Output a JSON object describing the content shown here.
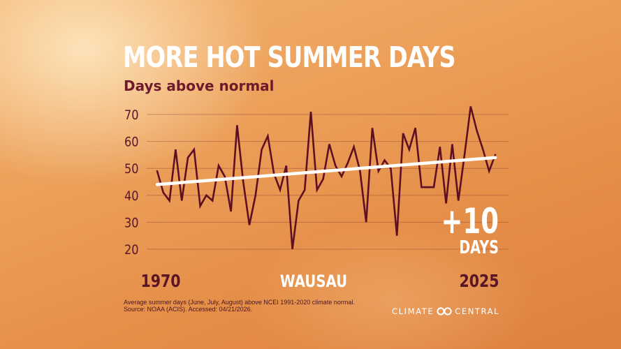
{
  "title": "MORE HOT SUMMER DAYS",
  "subtitle": "Days above normal",
  "location": "WAUSAU",
  "callout": {
    "value": "+10",
    "unit": "DAYS"
  },
  "footnote": {
    "line1": "Average summer days (June, July, August) above NCEI 1991-2020 climate normal.",
    "line2": "Source: NOAA (ACIS). Accessed: 04/21/2026."
  },
  "brand": {
    "left": "CLIMATE",
    "right": "CENTRAL",
    "logo_icon": "climate-central-logo-icon"
  },
  "colors": {
    "series": "#5e0f22",
    "trend": "#ffffff",
    "title": "#ffffff",
    "subtitle": "#6e1a2c",
    "axis_text": "#5a1626"
  },
  "chart_data": {
    "type": "line",
    "title": "MORE HOT SUMMER DAYS",
    "subtitle": "Days above normal",
    "xlabel": "",
    "ylabel": "",
    "x_start_label": "1970",
    "x_end_label": "2025",
    "ylim": [
      15,
      75
    ],
    "y_ticks": [
      20,
      30,
      40,
      50,
      60,
      70
    ],
    "grid": true,
    "x": [
      1970,
      1971,
      1972,
      1973,
      1974,
      1975,
      1976,
      1977,
      1978,
      1979,
      1980,
      1981,
      1982,
      1983,
      1984,
      1985,
      1986,
      1987,
      1988,
      1989,
      1990,
      1991,
      1992,
      1993,
      1994,
      1995,
      1996,
      1997,
      1998,
      1999,
      2000,
      2001,
      2002,
      2003,
      2004,
      2005,
      2006,
      2007,
      2008,
      2009,
      2010,
      2011,
      2012,
      2013,
      2014,
      2015,
      2016,
      2017,
      2018,
      2019,
      2020,
      2021,
      2022,
      2023,
      2024,
      2025
    ],
    "series": [
      {
        "name": "",
        "values": [
          49,
          41,
          38,
          57,
          38,
          54,
          57,
          36,
          40,
          38,
          51,
          47,
          34,
          66,
          45,
          29,
          40,
          57,
          62,
          48,
          42,
          51,
          20,
          38,
          42,
          71,
          42,
          46,
          59,
          51,
          47,
          52,
          58,
          49,
          30,
          65,
          49,
          53,
          50,
          25,
          63,
          57,
          65,
          43,
          43,
          43,
          58,
          37,
          59,
          38,
          55,
          73,
          64,
          57,
          49,
          55
        ]
      },
      {
        "name": "",
        "trend": true,
        "values_at_ends": [
          44,
          54
        ]
      }
    ]
  }
}
